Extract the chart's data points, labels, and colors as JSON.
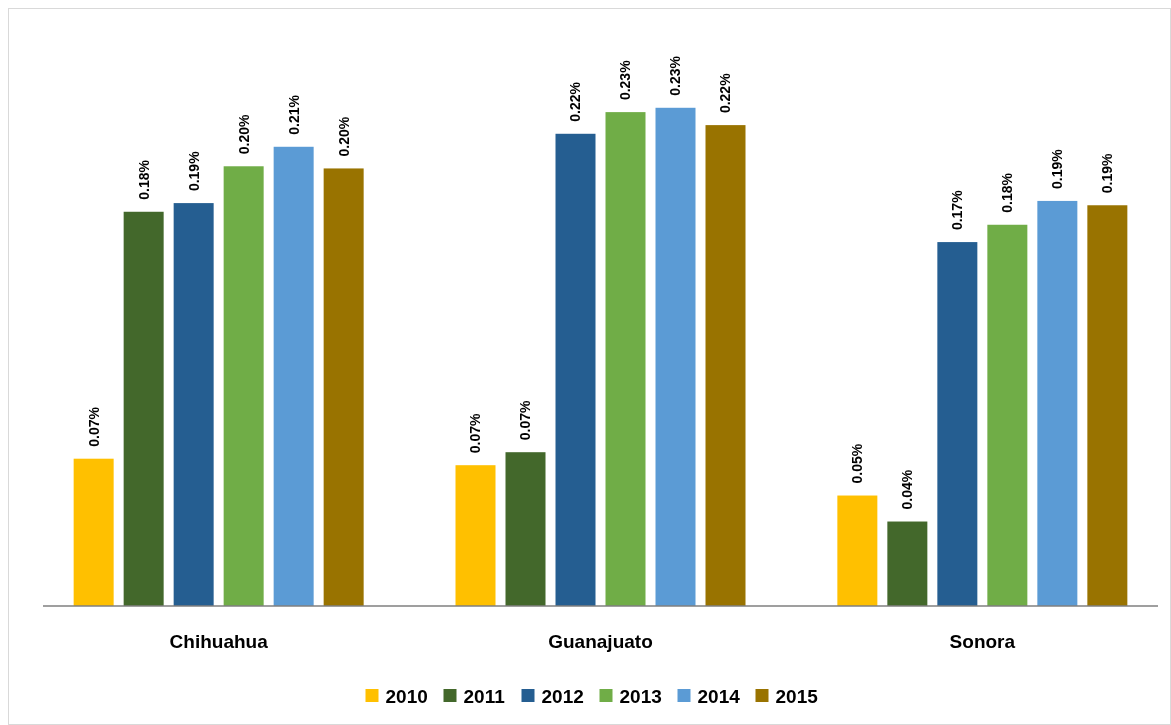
{
  "chart_data": {
    "type": "bar",
    "categories": [
      "Chihuahua",
      "Guanajuato",
      "Sonora"
    ],
    "series": [
      {
        "name": "2010",
        "color": "#ffc000",
        "values": [
          0.068,
          0.065,
          0.051
        ],
        "value_labels": [
          "0.07%",
          "0.07%",
          "0.05%"
        ]
      },
      {
        "name": "2011",
        "color": "#43682b",
        "values": [
          0.182,
          0.071,
          0.039
        ],
        "value_labels": [
          "0.18%",
          "0.07%",
          "0.04%"
        ]
      },
      {
        "name": "2012",
        "color": "#255e91",
        "values": [
          0.186,
          0.218,
          0.168
        ],
        "value_labels": [
          "0.19%",
          "0.22%",
          "0.17%"
        ]
      },
      {
        "name": "2013",
        "color": "#70ad47",
        "values": [
          0.203,
          0.228,
          0.176
        ],
        "value_labels": [
          "0.20%",
          "0.23%",
          "0.18%"
        ]
      },
      {
        "name": "2014",
        "color": "#5b9bd5",
        "values": [
          0.212,
          0.23,
          0.187
        ],
        "value_labels": [
          "0.21%",
          "0.23%",
          "0.19%"
        ]
      },
      {
        "name": "2015",
        "color": "#997300",
        "values": [
          0.202,
          0.222,
          0.185
        ],
        "value_labels": [
          "0.20%",
          "0.22%",
          "0.19%"
        ]
      }
    ],
    "legend": "bottom"
  }
}
